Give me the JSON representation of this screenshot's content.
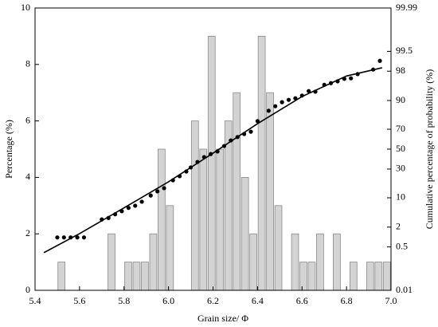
{
  "chart_data": {
    "type": "histogram",
    "xlabel": "Grain size/ Φ",
    "ylabel": "Percentage (%)",
    "y2label": "Cumulative percentage of probability (%)",
    "color": "#d3d3d3",
    "edgecolor": "#8a8a8a",
    "bins": [
      5.5,
      5.5375,
      5.575,
      5.6125,
      5.65,
      5.6875,
      5.725,
      5.7625,
      5.8,
      5.8375,
      5.875,
      5.9125,
      5.95,
      5.9875,
      6.025,
      6.0625,
      6.1,
      6.1375,
      6.175,
      6.2125,
      6.25,
      6.2875,
      6.325,
      6.3625,
      6.4,
      6.4375,
      6.475,
      6.5125,
      6.55,
      6.5875,
      6.625,
      6.6625,
      6.7,
      6.7375,
      6.775,
      6.8125,
      6.85,
      6.8875,
      6.925,
      6.9625,
      7.0
    ],
    "counts": [
      1,
      0,
      0,
      0,
      0,
      0,
      2,
      0,
      1,
      1,
      1,
      2,
      5,
      3,
      0,
      0,
      6,
      5,
      9,
      5,
      6,
      7,
      4,
      2,
      9,
      7,
      3,
      0,
      2,
      1,
      1,
      2,
      0,
      2,
      0,
      1,
      0,
      1,
      1,
      1
    ],
    "xlim": [
      5.4,
      7.0
    ],
    "xticks": [
      5.4,
      5.6,
      5.8,
      {
        "value": 6,
        "label": "6.0"
      },
      6.2,
      6.4,
      6.6,
      6.8,
      {
        "value": 7,
        "label": "7.0"
      }
    ],
    "ylim": [
      0,
      10
    ],
    "yticks": [
      0,
      2,
      4,
      6,
      8,
      10
    ],
    "y2lim": [
      0.01,
      99.99
    ],
    "y2scale": "probit",
    "y2ticks": [
      0.01,
      0.5,
      2,
      10,
      30,
      50,
      70,
      90,
      98,
      99.5,
      99.99
    ],
    "series": [
      {
        "type": "scatter",
        "axis": "y2",
        "color": "#000000",
        "x": [
          5.5,
          5.53,
          5.56,
          5.59,
          5.62,
          5.7,
          5.73,
          5.76,
          5.79,
          5.82,
          5.85,
          5.88,
          5.92,
          5.95,
          5.98,
          6.02,
          6.05,
          6.08,
          6.1,
          6.13,
          6.16,
          6.19,
          6.22,
          6.25,
          6.28,
          6.31,
          6.34,
          6.37,
          6.4,
          6.45,
          6.48,
          6.51,
          6.54,
          6.57,
          6.6,
          6.63,
          6.66,
          6.7,
          6.73,
          6.76,
          6.79,
          6.82,
          6.85,
          6.92,
          6.95
        ],
        "values": [
          1.0,
          1.0,
          1.0,
          1.0,
          1.0,
          3.2,
          3.5,
          4.3,
          5.1,
          6.1,
          6.8,
          8.3,
          11.1,
          13.3,
          15.2,
          20.6,
          23.8,
          27.8,
          31.5,
          36.8,
          41.7,
          44.9,
          47.6,
          53.3,
          59.1,
          62.5,
          65.5,
          67.7,
          77,
          84.4,
          87.1,
          89.2,
          90.3,
          91.0,
          92.1,
          93.7,
          93.5,
          95.5,
          95.9,
          96.3,
          96.8,
          96.9,
          97.6,
          98.2,
          99.0
        ]
      },
      {
        "type": "line",
        "axis": "y2",
        "color": "#000000",
        "x": [
          5.44,
          5.6,
          5.8,
          6.0,
          6.2,
          6.4,
          6.6,
          6.8,
          6.96
        ],
        "values": [
          0.32,
          1.3,
          6.1,
          19.5,
          45.8,
          74.9,
          91.7,
          97.3,
          98.4
        ]
      }
    ]
  }
}
